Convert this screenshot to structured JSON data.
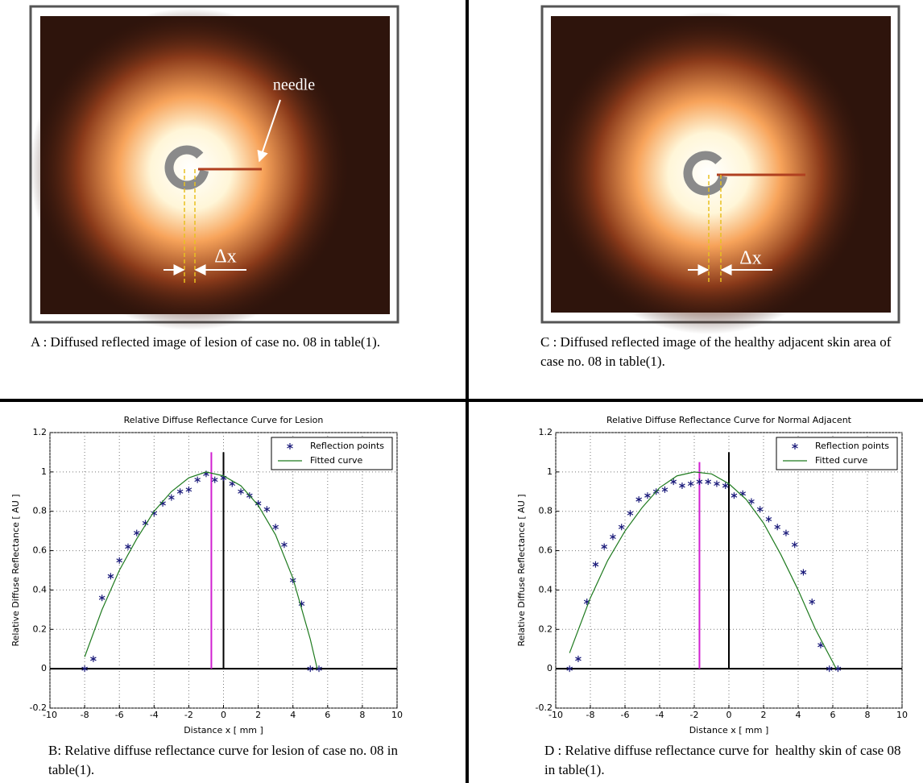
{
  "photos": [
    {
      "caption": "A : Diffused reflected image of lesion of case no. 08 in table(1).",
      "annotations": [
        "needle",
        "Δx"
      ]
    },
    {
      "caption": "C : Diffused reflected image of the healthy adjacent skin area of case no. 08 in table(1).",
      "annotations": [
        "Δx"
      ]
    }
  ],
  "chart_data": [
    {
      "type": "scatter",
      "title": "Relative Diffuse Reflectance Curve for Lesion",
      "x_label": "Distance x [ mm ]",
      "y_label": "Relative Diffuse Reflectance [ AU ]",
      "caption": "B: Relative diffuse reflectance curve for lesion of case no. 08 in table(1).",
      "xlim": [
        -10,
        10
      ],
      "xticks": [
        -10,
        -8,
        -6,
        -4,
        -2,
        0,
        2,
        4,
        6,
        8,
        10
      ],
      "ylim": [
        -0.2,
        1.2
      ],
      "yticks": [
        -0.2,
        0,
        0.2,
        0.4,
        0.6,
        0.8,
        1,
        1.2
      ],
      "grid": true,
      "legend": "upper right",
      "series": [
        {
          "name": "Reflection points",
          "style": "marker",
          "color": "#1a1a7a",
          "x": [
            -8,
            -7.5,
            -7,
            -6.5,
            -6,
            -5.5,
            -5,
            -4.5,
            -4,
            -3.5,
            -3,
            -2.5,
            -2,
            -1.5,
            -1,
            -0.5,
            0,
            0.5,
            1,
            1.5,
            2,
            2.5,
            3,
            3.5,
            4,
            4.5,
            5,
            5.5
          ],
          "values": [
            0,
            0.05,
            0.36,
            0.47,
            0.55,
            0.62,
            0.69,
            0.74,
            0.79,
            0.84,
            0.87,
            0.9,
            0.91,
            0.96,
            0.99,
            0.96,
            0.97,
            0.94,
            0.9,
            0.88,
            0.84,
            0.81,
            0.72,
            0.63,
            0.45,
            0.33,
            0,
            0
          ]
        },
        {
          "name": "Fitted curve",
          "style": "line",
          "color": "#1e7a1e",
          "x": [
            -8,
            -7,
            -6,
            -5,
            -4,
            -3,
            -2,
            -1,
            0,
            1,
            2,
            3,
            4,
            5,
            5.4
          ],
          "values": [
            0.06,
            0.3,
            0.5,
            0.66,
            0.8,
            0.9,
            0.97,
            1,
            0.98,
            0.93,
            0.83,
            0.68,
            0.46,
            0.15,
            0
          ]
        }
      ],
      "vertical_lines": [
        {
          "x": -0.7,
          "y": [
            0,
            1.1
          ],
          "color": "#d020d0"
        },
        {
          "x": 0,
          "y": [
            0,
            1.1
          ],
          "color": "#000000"
        }
      ],
      "horizontal_lines": [
        {
          "y": 0,
          "color": "#000000"
        }
      ]
    },
    {
      "type": "scatter",
      "title": "Relative Diffuse Reflectance Curve for Normal Adjacent",
      "x_label": "Distance x [ mm ]",
      "y_label": "Relative Diffuse Reflectance [ AU ]",
      "caption": "D : Relative diffuse reflectance curve for  healthy skin of case 08 in table(1).",
      "xlim": [
        -10,
        10
      ],
      "xticks": [
        -10,
        -8,
        -6,
        -4,
        -2,
        0,
        2,
        4,
        6,
        8,
        10
      ],
      "ylim": [
        -0.2,
        1.2
      ],
      "yticks": [
        -0.2,
        0,
        0.2,
        0.4,
        0.6,
        0.8,
        1,
        1.2
      ],
      "grid": true,
      "legend": "upper right",
      "series": [
        {
          "name": "Reflection points",
          "style": "marker",
          "color": "#1a1a7a",
          "x": [
            -9.2,
            -8.7,
            -8.2,
            -7.7,
            -7.2,
            -6.7,
            -6.2,
            -5.7,
            -5.2,
            -4.7,
            -4.2,
            -3.7,
            -3.2,
            -2.7,
            -2.2,
            -1.7,
            -1.2,
            -0.7,
            -0.2,
            0.3,
            0.8,
            1.3,
            1.8,
            2.3,
            2.8,
            3.3,
            3.8,
            4.3,
            4.8,
            5.3,
            5.8,
            6.3
          ],
          "values": [
            0,
            0.05,
            0.34,
            0.53,
            0.62,
            0.67,
            0.72,
            0.79,
            0.86,
            0.88,
            0.9,
            0.91,
            0.95,
            0.93,
            0.94,
            0.95,
            0.95,
            0.94,
            0.93,
            0.88,
            0.89,
            0.85,
            0.81,
            0.76,
            0.72,
            0.69,
            0.63,
            0.49,
            0.34,
            0.12,
            0,
            0
          ]
        },
        {
          "name": "Fitted curve",
          "style": "line",
          "color": "#1e7a1e",
          "x": [
            -9.2,
            -8,
            -7,
            -6,
            -5,
            -4,
            -3,
            -2,
            -1,
            0,
            1,
            2,
            3,
            4,
            5,
            6.2
          ],
          "values": [
            0.08,
            0.36,
            0.55,
            0.7,
            0.82,
            0.92,
            0.98,
            1,
            0.99,
            0.94,
            0.86,
            0.74,
            0.58,
            0.4,
            0.2,
            0
          ]
        }
      ],
      "vertical_lines": [
        {
          "x": -1.7,
          "y": [
            0,
            1.05
          ],
          "color": "#d020d0"
        },
        {
          "x": 0,
          "y": [
            0,
            1.1
          ],
          "color": "#000000"
        }
      ],
      "horizontal_lines": [
        {
          "y": 0,
          "color": "#000000"
        }
      ]
    }
  ]
}
